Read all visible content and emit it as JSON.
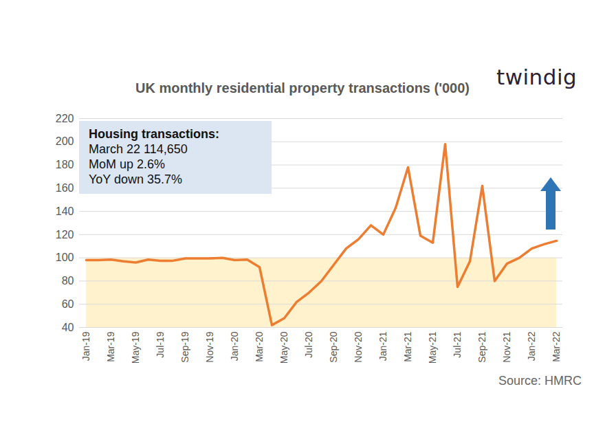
{
  "chart_data": {
    "type": "line",
    "title": "UK monthly residential property transactions ('000)",
    "logo": "twindig",
    "source": "Source: HMRC",
    "annotation": [
      "Housing transactions:",
      "March 22 114,650",
      "MoM up 2.6%",
      "YoY down 35.7%"
    ],
    "categories": [
      "Jan-19",
      null,
      "Mar-19",
      null,
      "May-19",
      null,
      "Jul-19",
      null,
      "Sep-19",
      null,
      "Nov-19",
      null,
      "Jan-20",
      null,
      "Mar-20",
      null,
      "May-20",
      null,
      "Jul-20",
      null,
      "Sep-20",
      null,
      "Nov-20",
      null,
      "Jan-21",
      null,
      "Mar-21",
      null,
      "May-21",
      null,
      "Jul-21",
      null,
      "Sep-21",
      null,
      "Nov-21",
      null,
      "Jan-22",
      null,
      "Mar-22"
    ],
    "values": [
      98,
      98,
      98.5,
      97,
      96,
      98.5,
      97.5,
      97.5,
      99.5,
      99.5,
      99.5,
      100,
      98,
      98.5,
      92,
      42,
      48,
      62,
      70,
      80,
      94,
      108,
      116,
      128,
      120,
      143,
      178,
      119,
      113,
      198,
      75,
      97,
      162,
      80,
      95,
      100,
      108,
      111.7,
      114.65
    ],
    "color": "#ed7d31",
    "band": [
      40,
      100
    ],
    "ylim": [
      40,
      220
    ],
    "yticks": [
      40,
      60,
      80,
      100,
      120,
      140,
      160,
      180,
      200,
      220
    ],
    "grid": true
  }
}
